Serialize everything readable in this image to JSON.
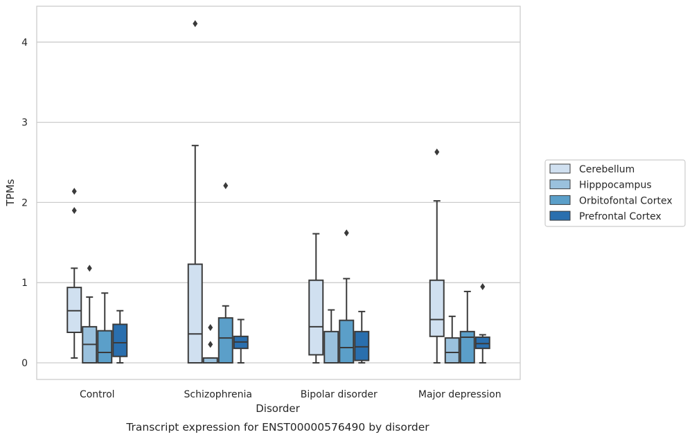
{
  "chart_data": {
    "type": "boxplot",
    "title": "",
    "caption": "Transcript expression for ENST00000576490 by disorder",
    "xlabel": "Disorder",
    "ylabel": "TPMs",
    "ylim": [
      -0.2,
      4.45
    ],
    "yticks": [
      0,
      1,
      2,
      3,
      4
    ],
    "grid": "horizontal",
    "legend_position": "right",
    "categories": [
      "Control",
      "Schizophrenia",
      "Bipolar disorder",
      "Major depression"
    ],
    "series": [
      {
        "name": "Cerebellum",
        "color": "#d0e0f0",
        "boxes": [
          {
            "whislo": 0.06,
            "q1": 0.38,
            "med": 0.65,
            "q3": 0.94,
            "whishi": 1.18,
            "fliers": [
              1.9,
              2.14
            ]
          },
          {
            "whislo": 0.0,
            "q1": 0.0,
            "med": 0.36,
            "q3": 1.23,
            "whishi": 2.71,
            "fliers": [
              4.23
            ]
          },
          {
            "whislo": 0.0,
            "q1": 0.1,
            "med": 0.45,
            "q3": 1.03,
            "whishi": 1.61,
            "fliers": []
          },
          {
            "whislo": 0.0,
            "q1": 0.33,
            "med": 0.54,
            "q3": 1.03,
            "whishi": 2.02,
            "fliers": [
              2.63
            ]
          }
        ]
      },
      {
        "name": "Hipppocampus",
        "color": "#9ac1dd",
        "boxes": [
          {
            "whislo": 0.0,
            "q1": 0.0,
            "med": 0.23,
            "q3": 0.45,
            "whishi": 0.82,
            "fliers": [
              1.18
            ]
          },
          {
            "whislo": 0.0,
            "q1": 0.0,
            "med": 0.0,
            "q3": 0.06,
            "whishi": 0.06,
            "fliers": [
              0.23,
              0.44
            ]
          },
          {
            "whislo": 0.0,
            "q1": 0.0,
            "med": 0.0,
            "q3": 0.39,
            "whishi": 0.66,
            "fliers": []
          },
          {
            "whislo": 0.0,
            "q1": 0.0,
            "med": 0.13,
            "q3": 0.31,
            "whishi": 0.58,
            "fliers": []
          }
        ]
      },
      {
        "name": "Orbitofontal Cortex",
        "color": "#5b9fc9",
        "boxes": [
          {
            "whislo": 0.0,
            "q1": 0.0,
            "med": 0.13,
            "q3": 0.4,
            "whishi": 0.87,
            "fliers": []
          },
          {
            "whislo": 0.0,
            "q1": 0.0,
            "med": 0.31,
            "q3": 0.56,
            "whishi": 0.71,
            "fliers": [
              2.21
            ]
          },
          {
            "whislo": 0.0,
            "q1": 0.0,
            "med": 0.19,
            "q3": 0.53,
            "whishi": 1.05,
            "fliers": [
              1.62
            ]
          },
          {
            "whislo": 0.0,
            "q1": 0.0,
            "med": 0.32,
            "q3": 0.39,
            "whishi": 0.89,
            "fliers": []
          }
        ]
      },
      {
        "name": "Prefrontal Cortex",
        "color": "#2a6fae",
        "boxes": [
          {
            "whislo": 0.0,
            "q1": 0.08,
            "med": 0.25,
            "q3": 0.48,
            "whishi": 0.65,
            "fliers": []
          },
          {
            "whislo": 0.0,
            "q1": 0.18,
            "med": 0.26,
            "q3": 0.33,
            "whishi": 0.54,
            "fliers": []
          },
          {
            "whislo": 0.0,
            "q1": 0.03,
            "med": 0.2,
            "q3": 0.39,
            "whishi": 0.64,
            "fliers": []
          },
          {
            "whislo": 0.0,
            "q1": 0.18,
            "med": 0.24,
            "q3": 0.32,
            "whishi": 0.35,
            "fliers": [
              0.95
            ]
          }
        ]
      }
    ]
  }
}
